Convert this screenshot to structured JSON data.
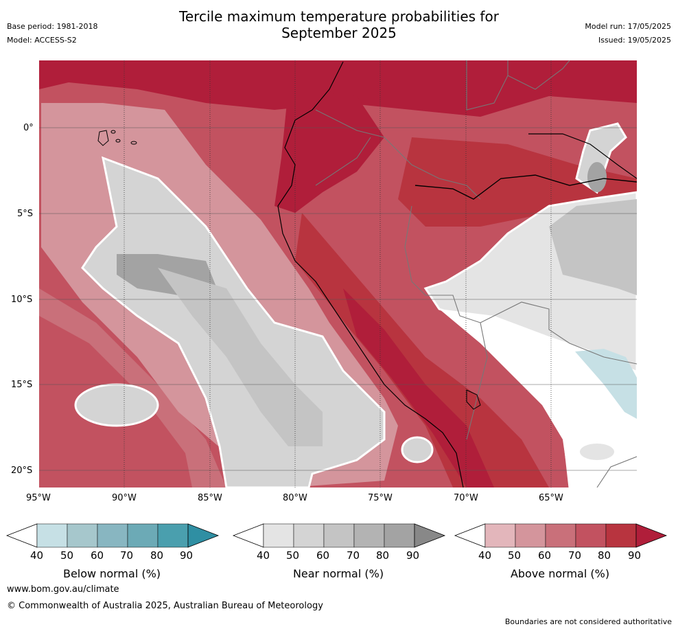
{
  "header": {
    "title": "Tercile maximum temperature probabilities for September 2025",
    "base_period": "Base period: 1981-2018",
    "model": "Model: ACCESS-S2",
    "model_run": "Model run: 17/05/2025",
    "issued": "Issued: 19/05/2025"
  },
  "map": {
    "lat_labels": [
      "0°",
      "5°S",
      "10°S",
      "15°S",
      "20°S"
    ],
    "lon_labels": [
      "95°W",
      "90°W",
      "85°W",
      "80°W",
      "75°W",
      "70°W",
      "65°W"
    ]
  },
  "colorbars": [
    {
      "label": "Below normal (%)",
      "ticks": [
        "40",
        "50",
        "60",
        "70",
        "80",
        "90"
      ],
      "colors": [
        "#c6e0e5",
        "#a6c7cc",
        "#88b6c1",
        "#6caab6",
        "#4a9fae",
        "#2f8fa3"
      ]
    },
    {
      "label": "Near normal (%)",
      "ticks": [
        "40",
        "50",
        "60",
        "70",
        "80",
        "90"
      ],
      "colors": [
        "#e4e4e4",
        "#d4d4d4",
        "#c4c4c4",
        "#b3b3b3",
        "#a3a3a3",
        "#888888"
      ]
    },
    {
      "label": "Above normal (%)",
      "ticks": [
        "40",
        "50",
        "60",
        "70",
        "80",
        "90"
      ],
      "colors": [
        "#e3b6bb",
        "#d4959c",
        "#c9707a",
        "#c25260",
        "#b8343f",
        "#b01e3a"
      ]
    }
  ],
  "footer": {
    "url": "www.bom.gov.au/climate",
    "copyright": "© Commonwealth of Australia 2025, Australian Bureau of Meteorology",
    "note": "Boundaries are not considered authoritative"
  }
}
